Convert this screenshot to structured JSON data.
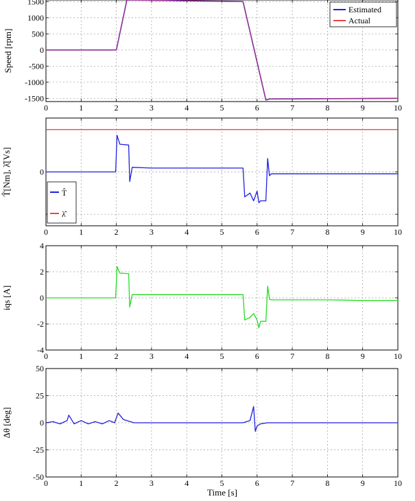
{
  "colors": {
    "estimated": "#1f1fe0",
    "actual": "#ee4444",
    "overlap": "#8a2a9a",
    "torque": "#1f1fe0",
    "flux": "#ee4444",
    "current": "#22dd22",
    "angle_err": "#1f1fe0",
    "grid": "#9a9a9a"
  },
  "chart_data": [
    {
      "type": "line",
      "ylabel": "Speed [rpm]",
      "xlim": [
        0,
        10
      ],
      "ylim": [
        -1600,
        1550
      ],
      "yticks": [
        1500,
        1000,
        500,
        0,
        -500,
        -1000,
        -1500
      ],
      "xticks": [
        0,
        1,
        2,
        3,
        4,
        5,
        6,
        7,
        8,
        9,
        10
      ],
      "grid": true,
      "legend": "top-right",
      "series": [
        {
          "name": "Estimated",
          "x": [
            0,
            2,
            2.3,
            5.6,
            6.25,
            6.35,
            10
          ],
          "y": [
            0,
            0,
            1550,
            1500,
            -1550,
            -1520,
            -1500
          ]
        },
        {
          "name": "Actual",
          "x": [
            0,
            2,
            2.3,
            5.6,
            6.25,
            6.35,
            10
          ],
          "y": [
            0,
            0,
            1550,
            1500,
            -1550,
            -1520,
            -1500
          ]
        }
      ]
    },
    {
      "type": "line",
      "ylabel": "T̂[Nm], λ̂[Vs]",
      "xlim": [
        0,
        10
      ],
      "ylim": [
        -1.4,
        1.4
      ],
      "yticks": [
        0
      ],
      "xticks": [
        0,
        1,
        2,
        3,
        4,
        5,
        6,
        7,
        8,
        9,
        10
      ],
      "grid": true,
      "legend": "bottom-left",
      "series": [
        {
          "name": "T̂",
          "x": [
            0,
            1.98,
            2.02,
            2.1,
            2.35,
            2.38,
            2.45,
            3,
            4,
            5,
            5.6,
            5.65,
            5.8,
            5.9,
            6.0,
            6.05,
            6.1,
            6.25,
            6.3,
            6.35,
            6.4,
            7,
            8,
            9,
            10
          ],
          "y": [
            0,
            0,
            0.95,
            0.72,
            0.7,
            -0.25,
            0.12,
            0.1,
            0.1,
            0.1,
            0.1,
            -0.65,
            -0.55,
            -0.75,
            -0.5,
            -0.8,
            -0.75,
            -0.75,
            0.35,
            -0.1,
            -0.05,
            -0.05,
            -0.05,
            -0.05,
            -0.05
          ]
        },
        {
          "name": "λ̂",
          "x": [
            0,
            10
          ],
          "y": [
            1.1,
            1.1
          ]
        }
      ]
    },
    {
      "type": "line",
      "ylabel": "iqs [A]",
      "xlim": [
        0,
        10
      ],
      "ylim": [
        -4,
        4
      ],
      "yticks": [
        4,
        2,
        0,
        -2,
        -4
      ],
      "xticks": [
        0,
        1,
        2,
        3,
        4,
        5,
        6,
        7,
        8,
        9,
        10
      ],
      "grid": true,
      "series": [
        {
          "x": [
            0,
            1.98,
            2.02,
            2.1,
            2.35,
            2.38,
            2.45,
            3,
            4,
            5,
            5.6,
            5.65,
            5.8,
            5.9,
            6.0,
            6.05,
            6.1,
            6.25,
            6.3,
            6.35,
            6.4,
            7,
            8,
            9,
            10
          ],
          "y": [
            0,
            0,
            2.4,
            1.9,
            1.85,
            -0.7,
            0.25,
            0.25,
            0.25,
            0.25,
            0.25,
            -1.7,
            -1.5,
            -1.2,
            -1.7,
            -2.3,
            -1.8,
            -1.8,
            0.9,
            -0.1,
            -0.15,
            -0.15,
            -0.15,
            -0.2,
            -0.2
          ]
        }
      ]
    },
    {
      "type": "line",
      "ylabel": "Δθ [deg]",
      "xlabel": "Time [s]",
      "xlim": [
        0,
        10
      ],
      "ylim": [
        -50,
        50
      ],
      "yticks": [
        50,
        25,
        0,
        -25,
        -50
      ],
      "xticks": [
        0,
        1,
        2,
        3,
        4,
        5,
        6,
        7,
        8,
        9,
        10
      ],
      "grid": true,
      "series": [
        {
          "x": [
            0,
            0.2,
            0.4,
            0.6,
            0.65,
            0.8,
            1.0,
            1.2,
            1.4,
            1.6,
            1.8,
            1.95,
            2.05,
            2.2,
            2.5,
            3,
            4,
            5,
            5.6,
            5.8,
            5.9,
            5.95,
            6.0,
            6.1,
            6.3,
            6.6,
            7,
            8,
            9,
            10
          ],
          "y": [
            0,
            1,
            -1,
            2,
            7,
            -1,
            2,
            -1,
            1,
            -1,
            2,
            0,
            9,
            3,
            0,
            0,
            0,
            0,
            0,
            2,
            15,
            -8,
            -3,
            -1,
            0,
            0,
            0,
            0,
            0,
            0
          ]
        }
      ]
    }
  ]
}
